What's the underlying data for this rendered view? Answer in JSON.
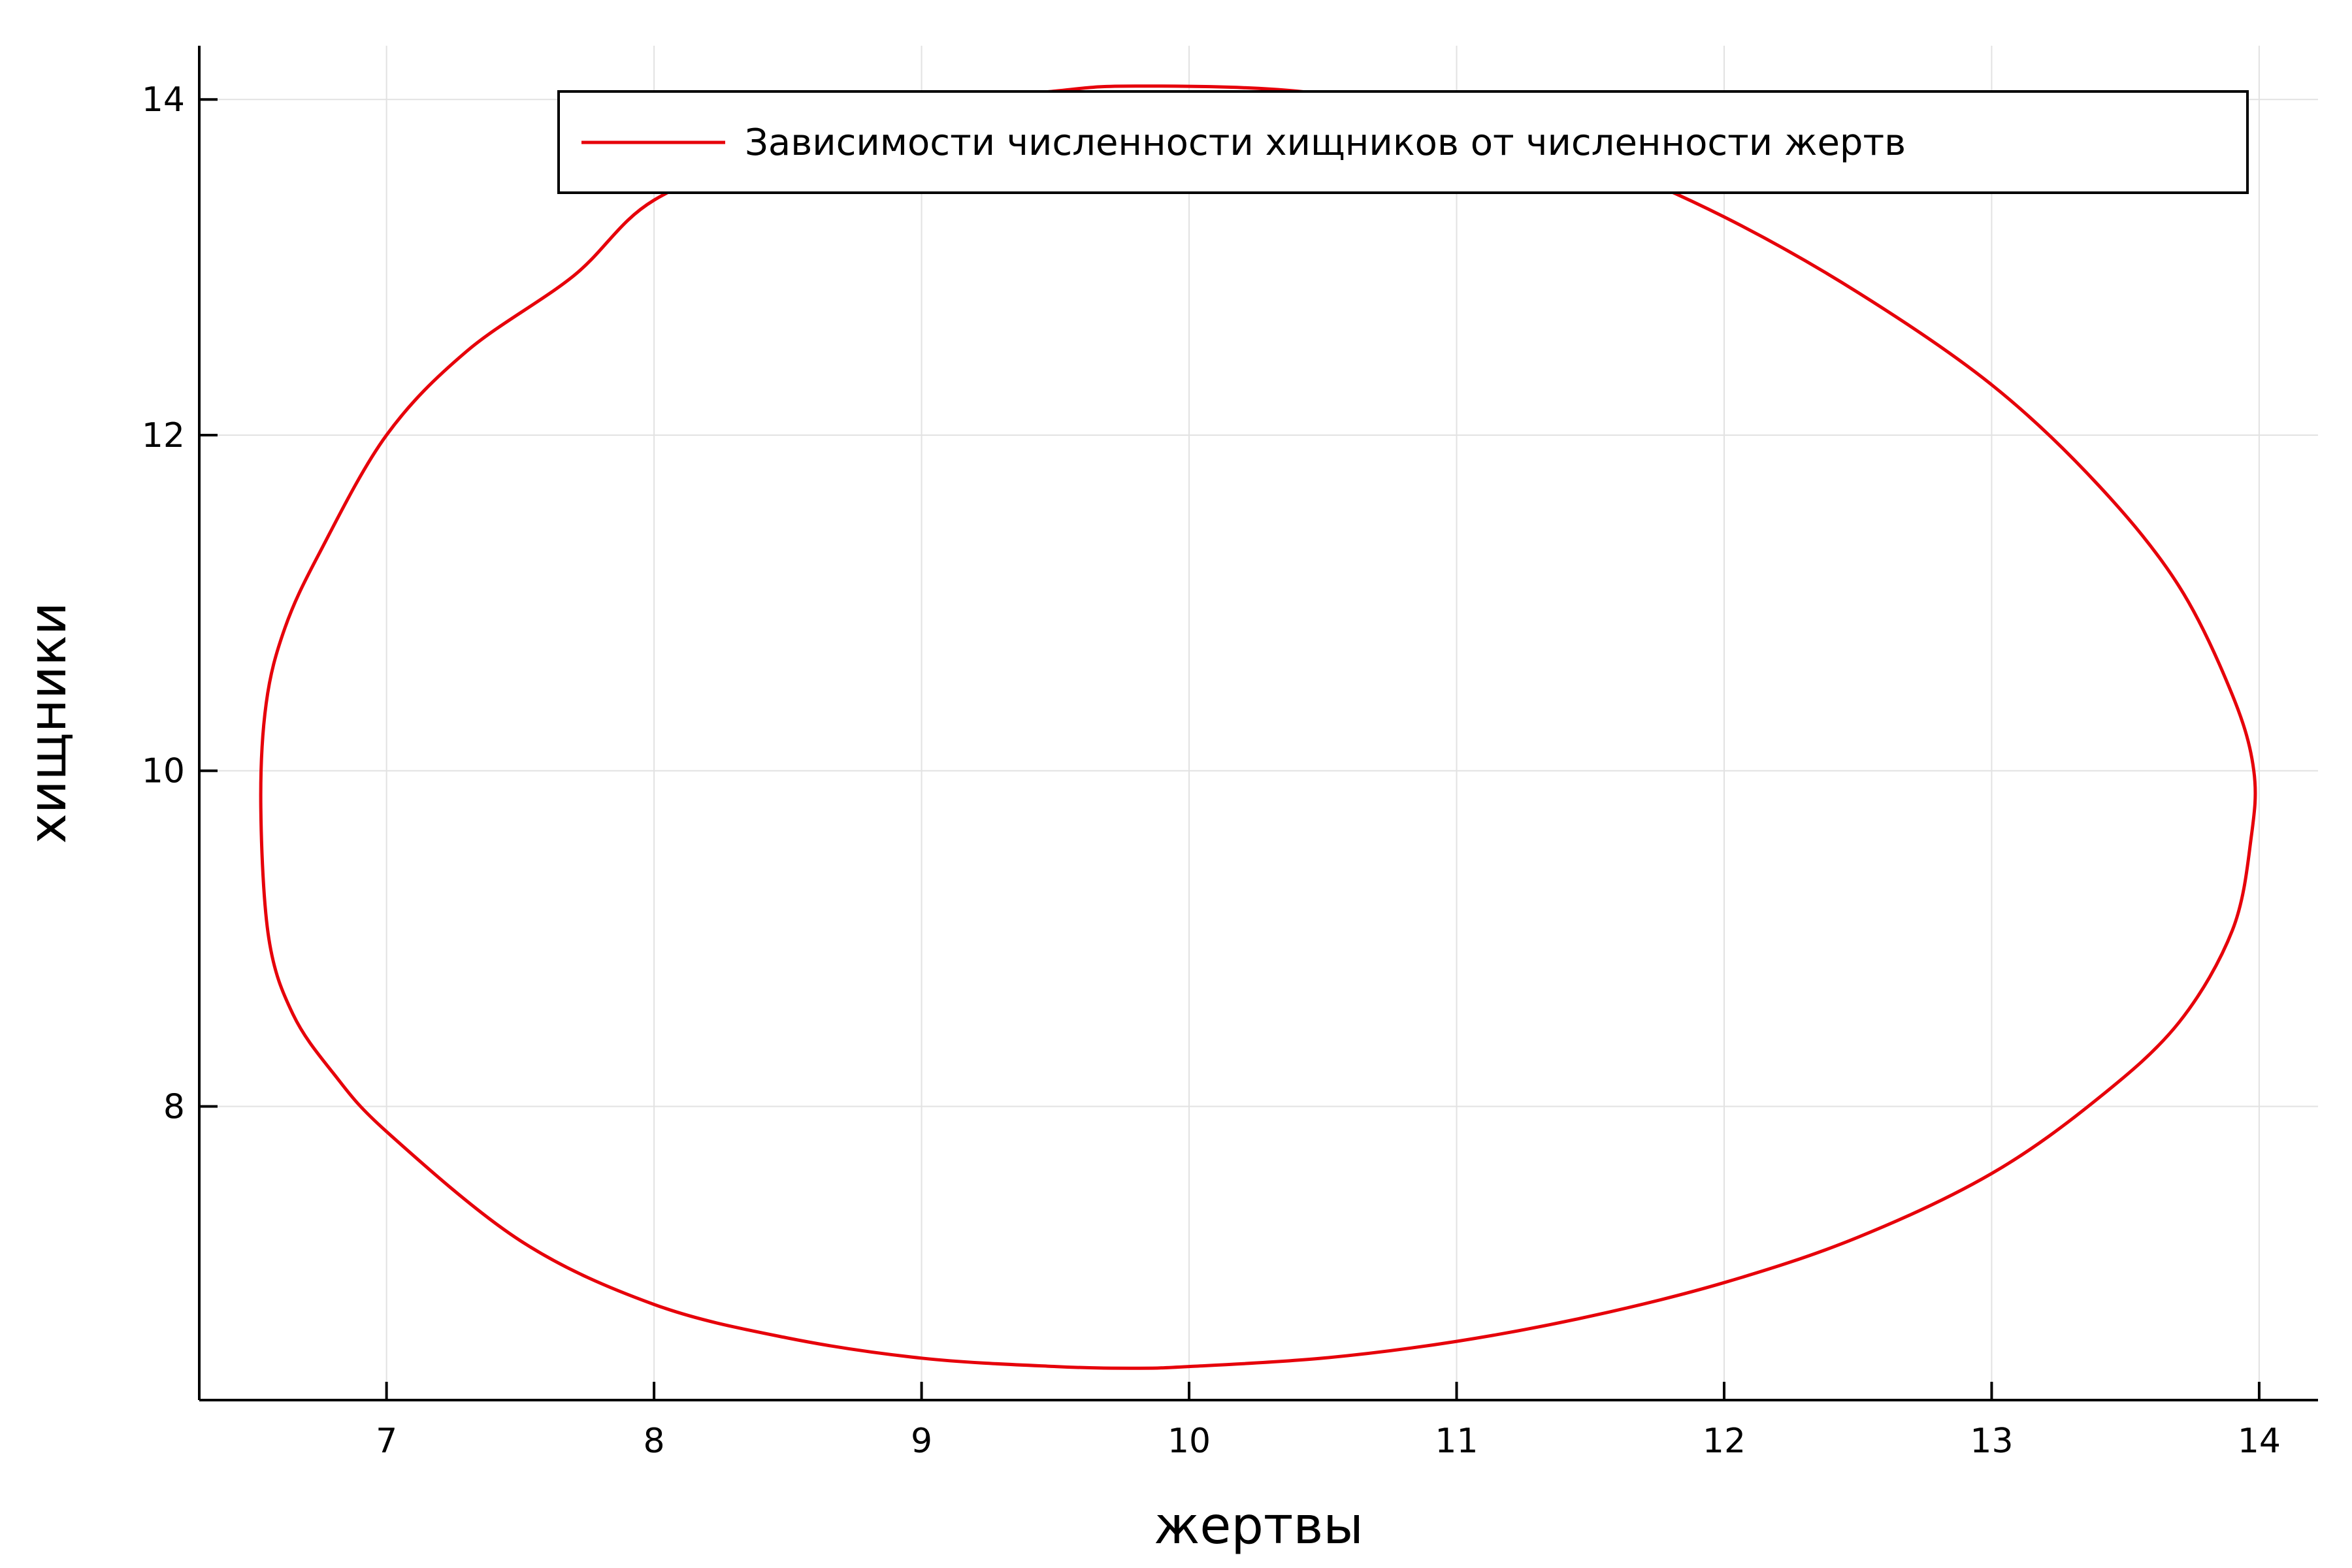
{
  "chart_data": {
    "type": "line",
    "title": "",
    "xlabel": "жертвы",
    "ylabel": "хищники",
    "xlim": [
      6.3,
      14.22
    ],
    "ylim": [
      6.25,
      14.32
    ],
    "x_ticks": [
      7,
      8,
      9,
      10,
      11,
      12,
      13,
      14
    ],
    "y_ticks": [
      8,
      10,
      12,
      14
    ],
    "x_tick_labels": [
      "7",
      "8",
      "9",
      "10",
      "11",
      "12",
      "13",
      "14"
    ],
    "y_tick_labels": [
      "8",
      "10",
      "12",
      "14"
    ],
    "grid": true,
    "legend": {
      "position": "top-right",
      "entries": [
        "Зависимости численности хищников от численности жертв"
      ]
    },
    "series": [
      {
        "name": "Зависимости численности хищников от численности жертв",
        "color": "#e6000a",
        "x": [
          9.8,
          10.4,
          11.0,
          11.5,
          12.0,
          12.5,
          13.0,
          13.4,
          13.7,
          13.9,
          13.98,
          13.97,
          13.9,
          13.7,
          13.4,
          13.0,
          12.5,
          12.0,
          11.5,
          11.0,
          10.5,
          10.0,
          9.8,
          9.5,
          9.0,
          8.5,
          8.0,
          7.5,
          7.0,
          6.8,
          6.65,
          6.56,
          6.53,
          6.55,
          6.62,
          6.75,
          7.0,
          7.3,
          7.7,
          8.0,
          8.5,
          9.0,
          9.5,
          9.8
        ],
        "y": [
          14.08,
          14.05,
          13.9,
          13.65,
          13.3,
          12.85,
          12.3,
          11.7,
          11.1,
          10.45,
          10.0,
          9.6,
          9.05,
          8.5,
          8.05,
          7.6,
          7.22,
          6.95,
          6.75,
          6.6,
          6.5,
          6.45,
          6.44,
          6.45,
          6.5,
          6.62,
          6.82,
          7.2,
          7.85,
          8.2,
          8.55,
          9.0,
          9.78,
          10.4,
          10.85,
          11.3,
          12.0,
          12.5,
          12.95,
          13.4,
          13.72,
          13.95,
          14.05,
          14.08
        ]
      }
    ]
  }
}
